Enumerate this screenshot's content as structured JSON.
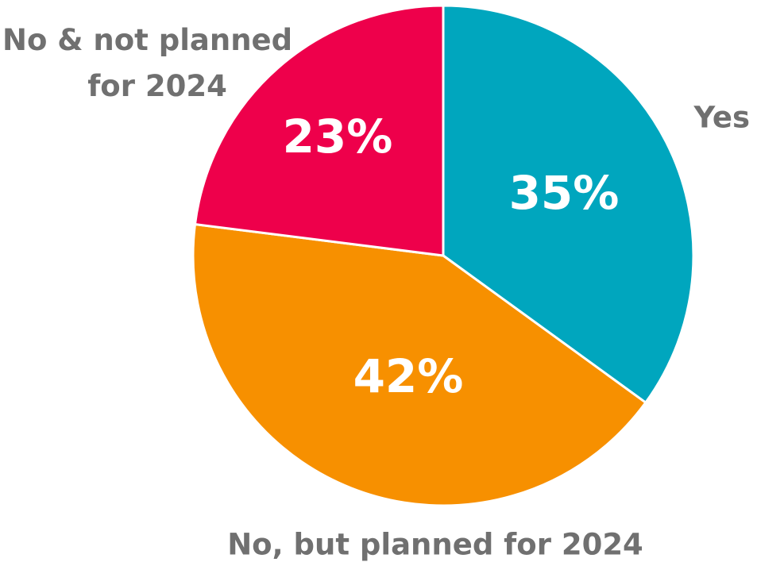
{
  "chart_data": {
    "type": "pie",
    "slices": [
      {
        "label": "Yes",
        "value": 35,
        "value_label": "35%",
        "color": "#00A6BE"
      },
      {
        "label": "No, but planned for 2024",
        "value": 42,
        "value_label": "42%",
        "color": "#F79000"
      },
      {
        "label": "No & not planned for 2024",
        "value": 23,
        "value_label": "23%",
        "color": "#EE004B"
      }
    ]
  }
}
